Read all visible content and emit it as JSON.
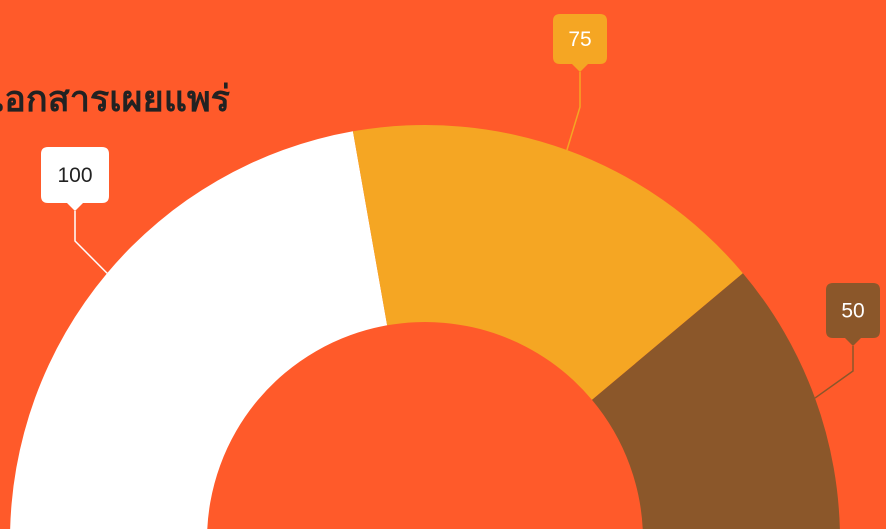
{
  "chart_data": {
    "type": "pie",
    "variant": "semi-donut",
    "title": "เอกสารเผยแพร่",
    "slices": [
      {
        "value": 100,
        "label": "100",
        "color": "#FFFFFF",
        "label_text_color": "#222222"
      },
      {
        "value": 75,
        "label": "75",
        "color": "#F5A623",
        "label_text_color": "#FFFFFF"
      },
      {
        "value": 50,
        "label": "50",
        "color": "#8B572A",
        "label_text_color": "#FFFFFF"
      }
    ],
    "background": "#FF5A2A",
    "legend": "none"
  }
}
